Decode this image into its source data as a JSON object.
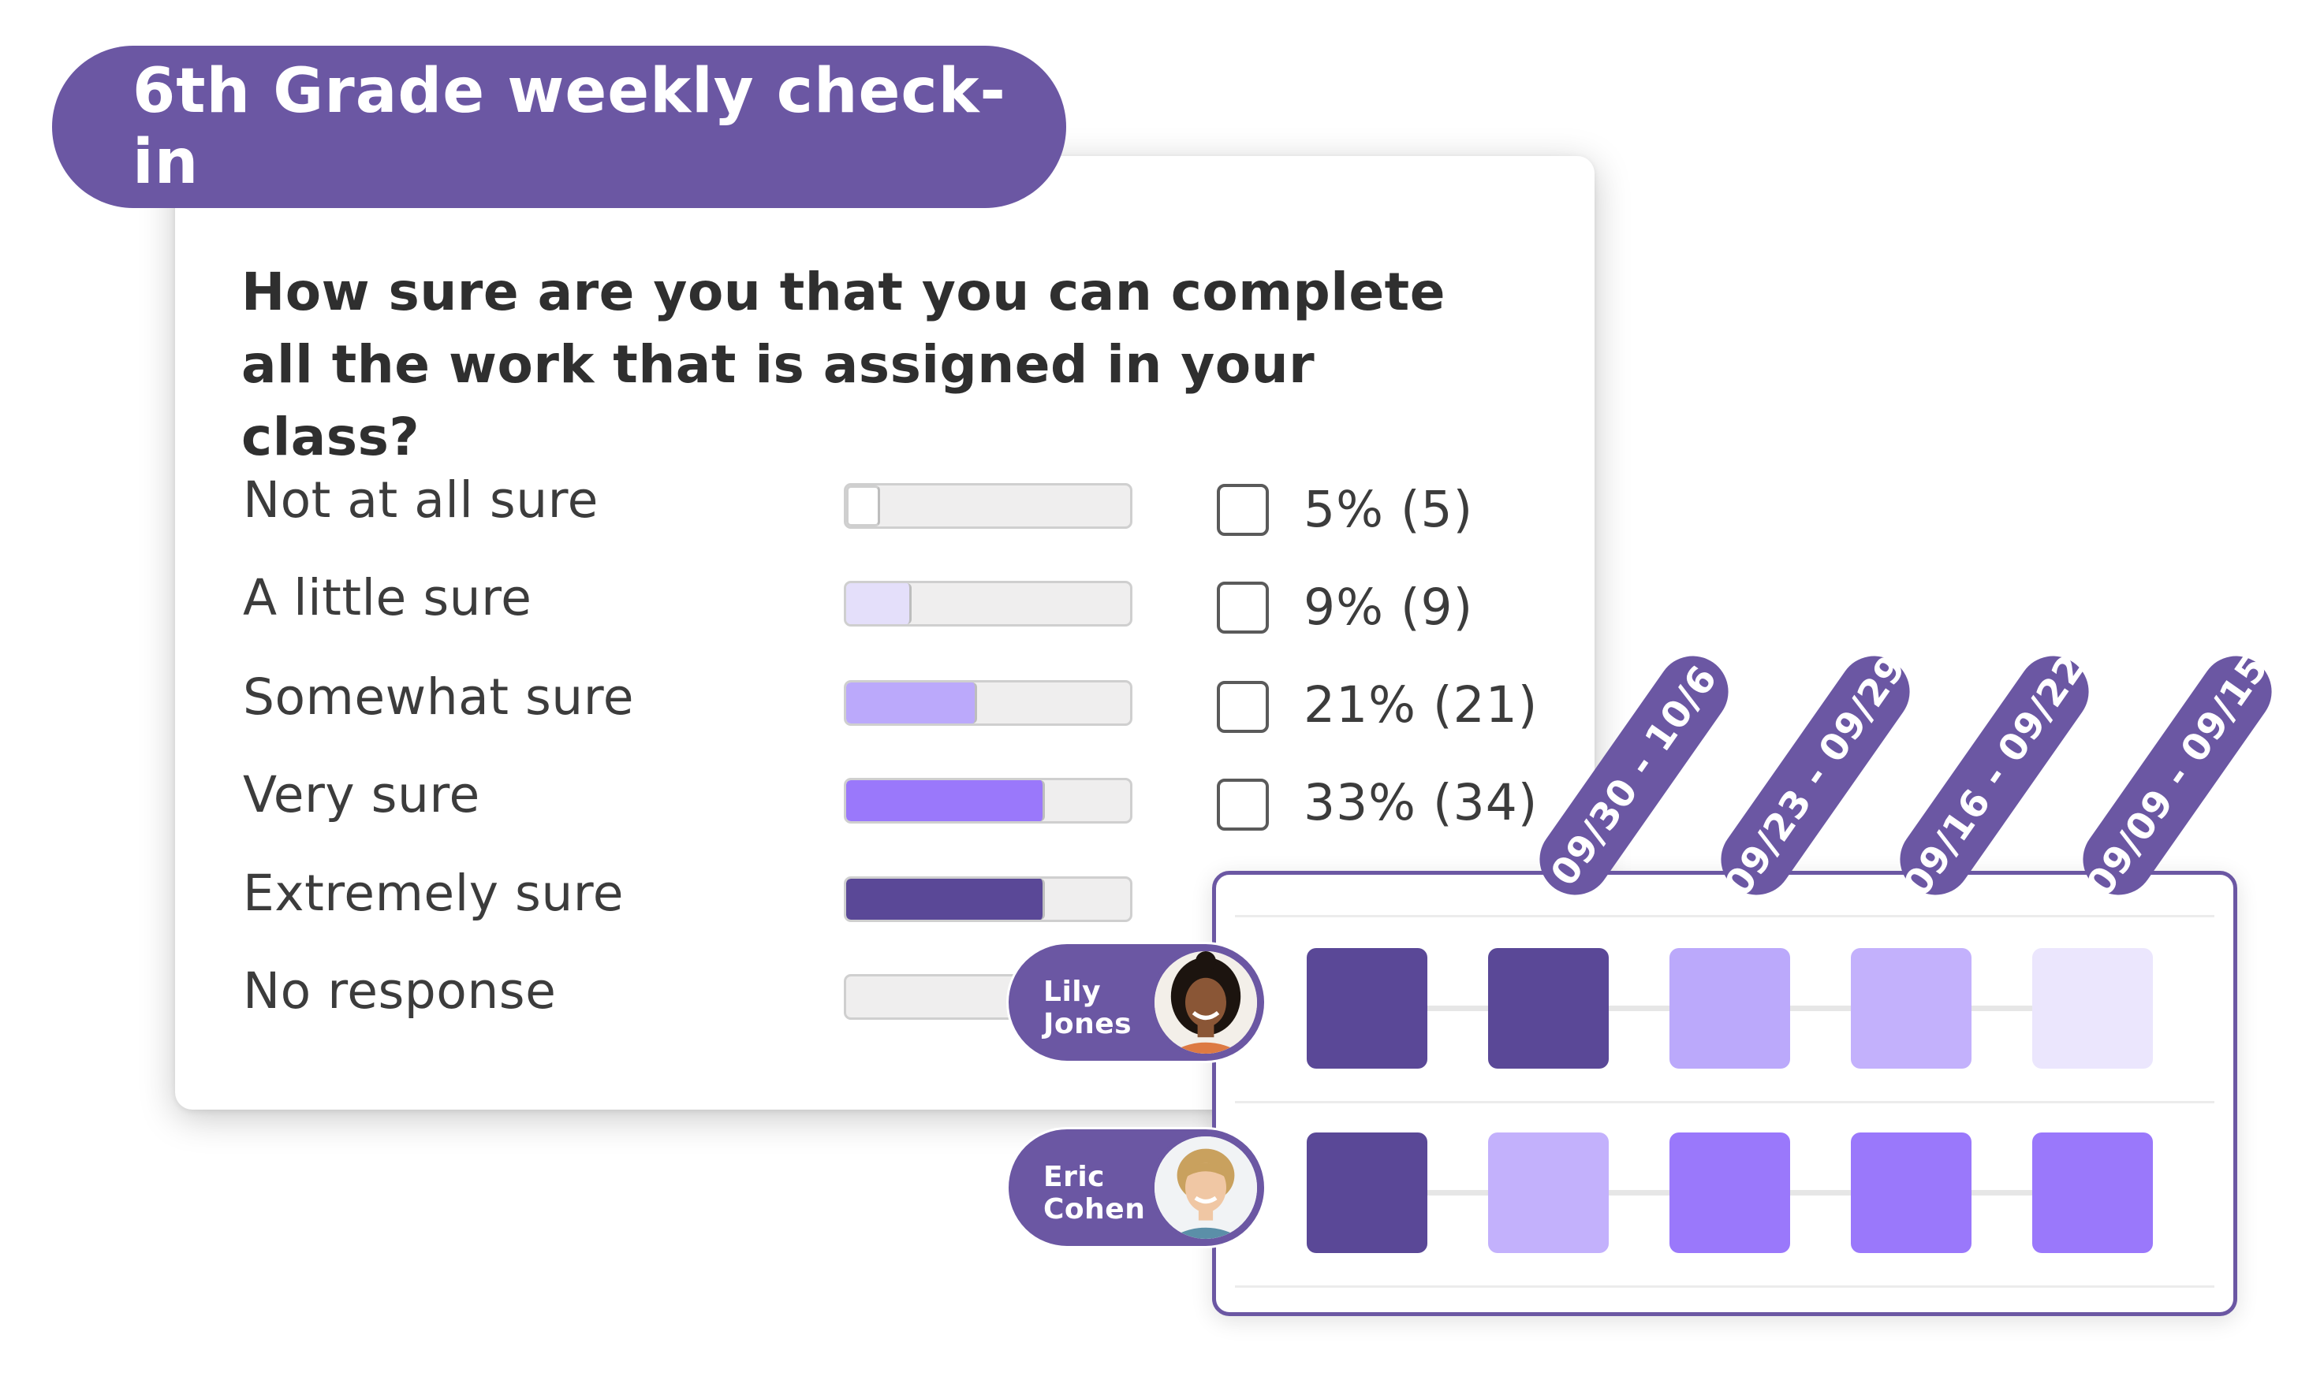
{
  "title": "6th Grade weekly check-in",
  "question": {
    "line1": "How sure are you that you can complete",
    "line2": "all the work that is assigned in your class?"
  },
  "options": [
    {
      "label": "Not at all sure",
      "percent_text": "5% (5)",
      "fill_fraction": 0.12,
      "fill_color": "#ffffff",
      "has_checkbox": true
    },
    {
      "label": "A little sure",
      "percent_text": "9% (9)",
      "fill_fraction": 0.23,
      "fill_color": "#e4dffa",
      "has_checkbox": true
    },
    {
      "label": "Somewhat sure",
      "percent_text": "21% (21)",
      "fill_fraction": 0.46,
      "fill_color": "#bba9fb",
      "has_checkbox": true
    },
    {
      "label": "Very sure",
      "percent_text": "33% (34)",
      "fill_fraction": 0.7,
      "fill_color": "#9a78fb",
      "has_checkbox": true
    },
    {
      "label": "Extremely sure",
      "percent_text": "",
      "fill_fraction": 0.7,
      "fill_color": "#5a4897",
      "has_checkbox": false
    },
    {
      "label": "No response",
      "percent_text": "",
      "fill_fraction": 0.0,
      "fill_color": "#efeeee",
      "has_checkbox": false
    }
  ],
  "weeks": [
    "09/30 - 10/6",
    "09/23 - 09/29",
    "09/16 - 09/22",
    "09/09 - 09/15"
  ],
  "students": [
    {
      "first_name": "Lily",
      "last_name": "Jones",
      "cells": [
        "#5a4897",
        "#5a4897",
        "#bba9fb",
        "#c3b1fc",
        "#ebe6fd"
      ]
    },
    {
      "first_name": "Eric",
      "last_name": "Cohen",
      "cells": [
        "#5a4897",
        "#c3b1fc",
        "#9a78fb",
        "#9a78fb",
        "#9a78fb"
      ]
    }
  ]
}
